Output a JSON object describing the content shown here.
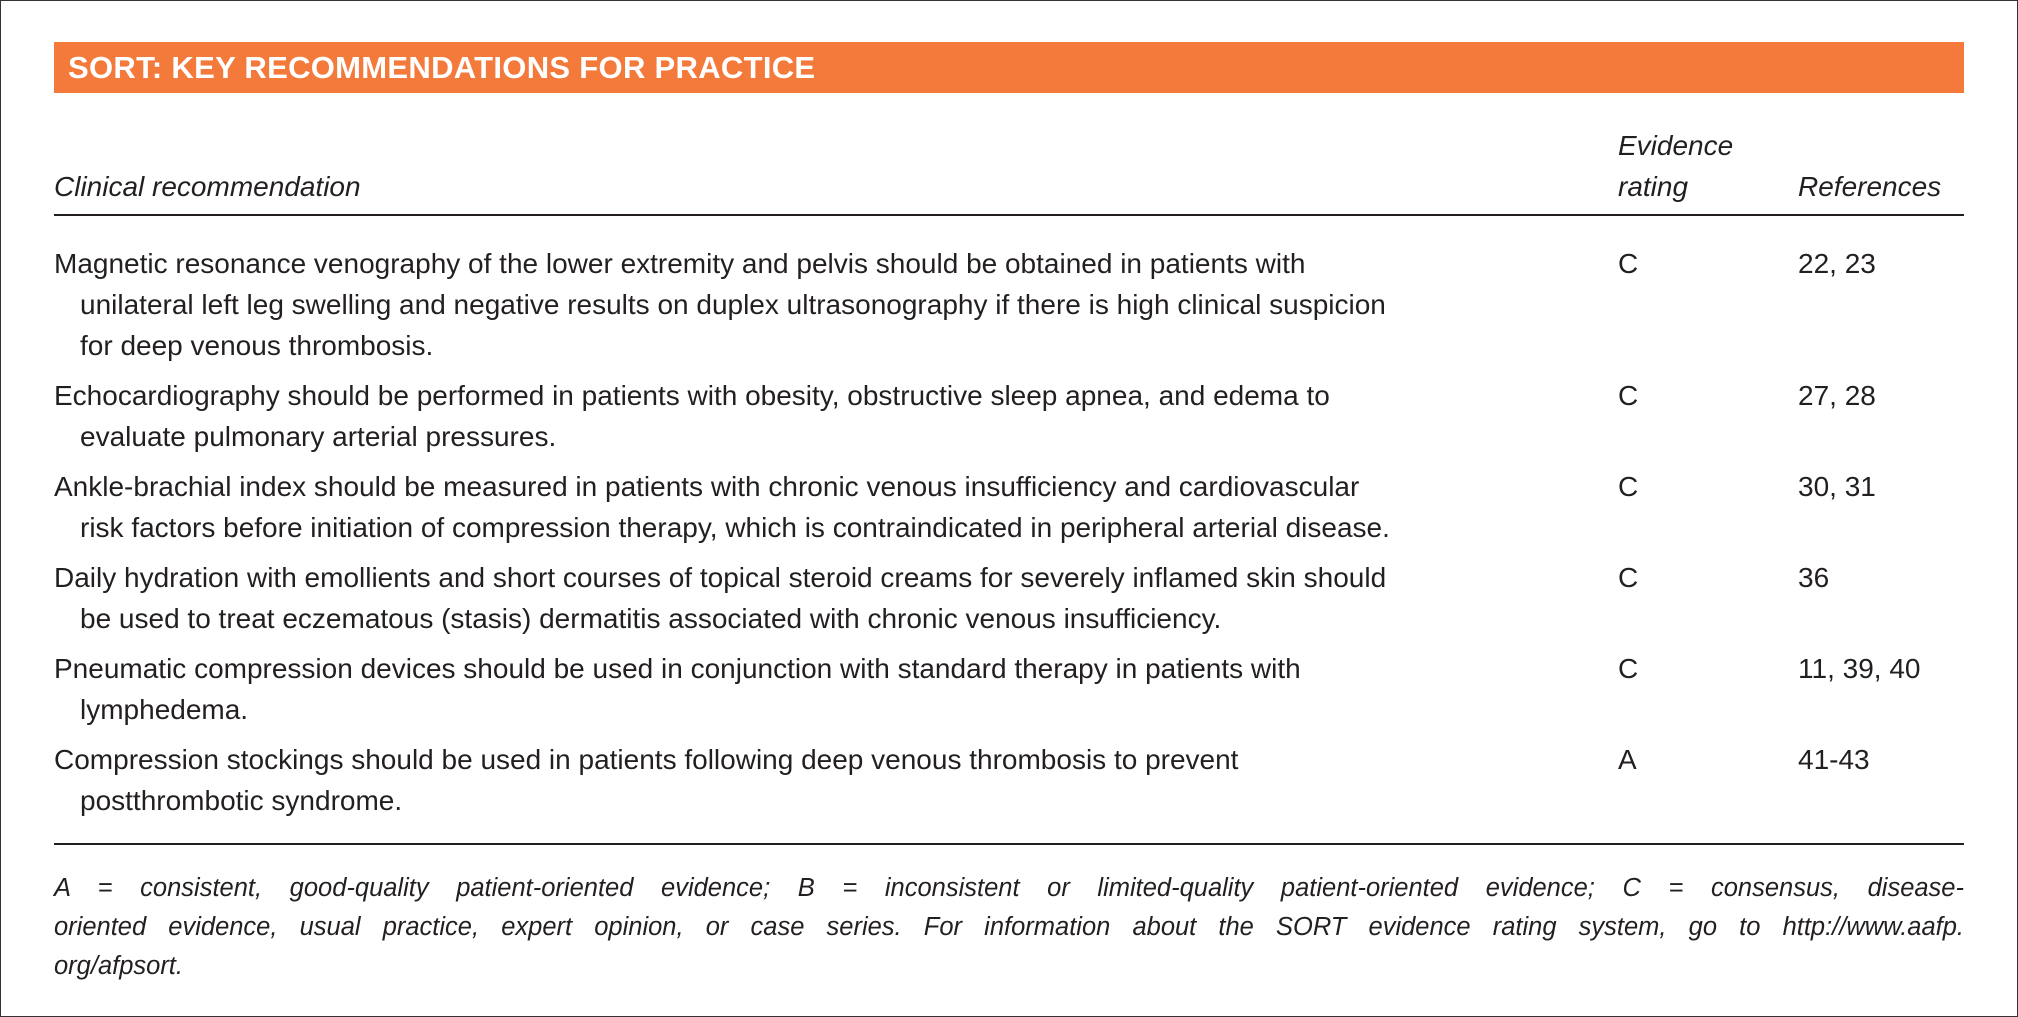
{
  "banner": {
    "title": "SORT: KEY RECOMMENDATIONS FOR PRACTICE",
    "color": "#f47a3c"
  },
  "headers": {
    "recommendation": "Clinical recommendation",
    "rating_line1": "Evidence",
    "rating_line2": "rating",
    "references": "References"
  },
  "rows": [
    {
      "lines": [
        "Magnetic resonance venography of the lower extremity and pelvis should be obtained in patients with",
        "unilateral left leg swelling and negative results on duplex ultrasonography if there is high clinical suspicion",
        "for deep venous thrombosis."
      ],
      "rating": "C",
      "references": "22, 23"
    },
    {
      "lines": [
        "Echocardiography should be performed in patients with obesity, obstructive sleep apnea, and edema to",
        "evaluate pulmonary arterial pressures."
      ],
      "rating": "C",
      "references": "27, 28"
    },
    {
      "lines": [
        "Ankle-brachial index should be measured in patients with chronic venous insufficiency and cardiovascular",
        "risk factors before initiation of compression therapy, which is contraindicated in peripheral arterial disease."
      ],
      "rating": "C",
      "references": "30, 31"
    },
    {
      "lines": [
        "Daily hydration with emollients and short courses of topical steroid creams for severely inflamed skin should",
        "be used to treat eczematous (stasis) dermatitis associated with chronic venous insufficiency."
      ],
      "rating": "C",
      "references": "36"
    },
    {
      "lines": [
        "Pneumatic compression devices should be used in conjunction with standard therapy in patients with",
        "lymphedema."
      ],
      "rating": "C",
      "references": "11, 39, 40"
    },
    {
      "lines": [
        "Compression stockings should be used in patients following deep venous thrombosis to prevent",
        "postthrombotic syndrome."
      ],
      "rating": "A",
      "references": "41-43"
    }
  ],
  "footnote": {
    "lines": [
      "A = consistent, good-quality patient-oriented evidence; B = inconsistent or limited-quality patient-oriented evidence; C = consensus, disease-",
      "oriented evidence, usual practice, expert opinion, or case series. For information about the SORT evidence rating system, go to http://www.aafp.",
      "org/afpsort."
    ]
  }
}
